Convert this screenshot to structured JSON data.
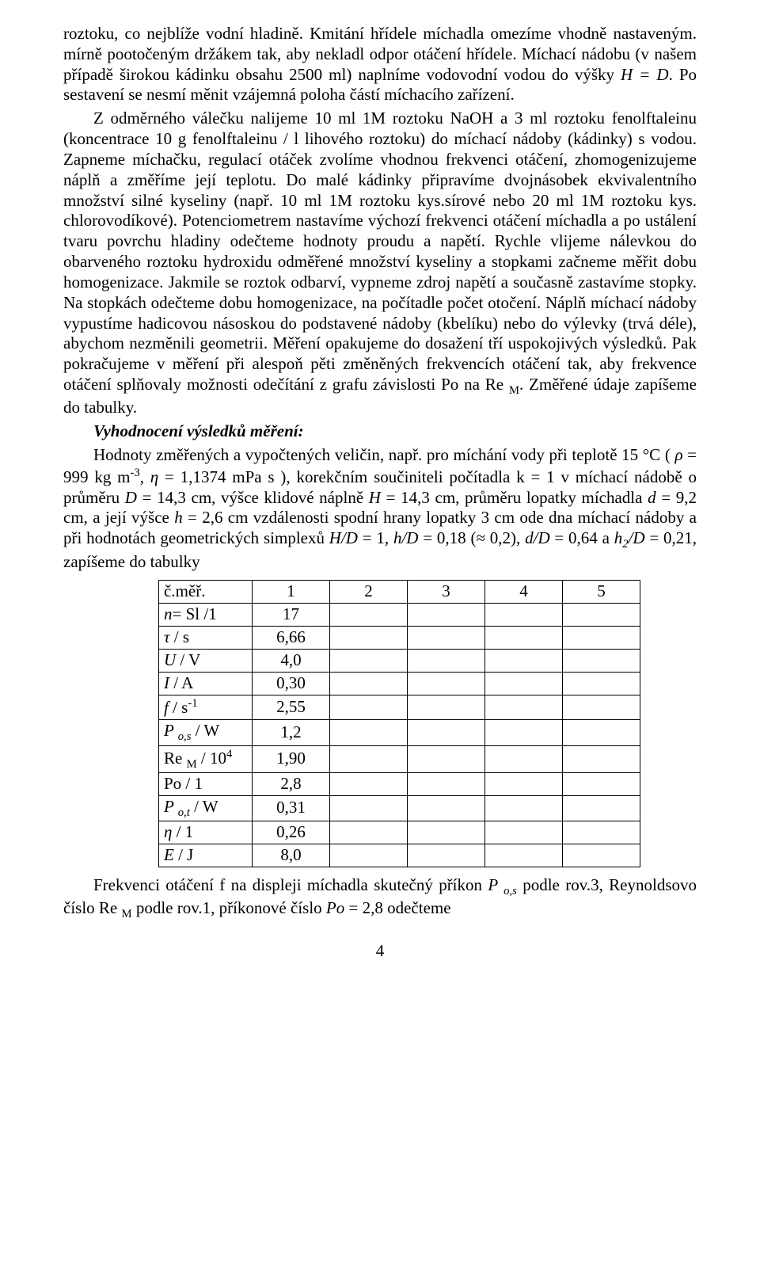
{
  "p1": "roztoku, co nejblíže vodní hladině. Kmitání hřídele míchadla omezíme vhodně nastaveným. mírně pootočeným držákem tak, aby nekladl odpor otáčení hřídele. Míchací nádobu (v našem případě širokou kádinku obsahu 2500 ml) naplníme vodovodní vodou do výšky ",
  "p1b": ".    Po sestavení se nesmí měnit vzájemná poloha částí míchacího zařízení.",
  "HeqD": "H = D",
  "p2": "Z odměrného válečku nalijeme 10 ml 1M roztoku NaOH a 3 ml roztoku fenolftaleinu (koncentrace 10 g fenolftaleinu / l lihového roztoku) do míchací nádoby (kádinky) s vodou. Zapneme míchačku, regulací otáček zvolíme vhodnou frekvenci otáčení, zhomogenizujeme náplň a změříme její teplotu. Do malé kádinky připravíme dvojnásobek ekvivalentního množství silné kyseliny (např. 10 ml 1M roztoku kys.sírové nebo 20 ml 1M roztoku kys. chlorovodíkové). Potenciometrem nastavíme výchozí frekvenci otáčení míchadla a po ustálení tvaru povrchu hladiny odečteme hodnoty proudu a napětí. Rychle vlijeme nálevkou do obarveného roztoku hydroxidu odměřené množství kyseliny a  stopkami začneme měřit dobu homogenizace. Jakmile se roztok odbarví, vypneme zdroj napětí a současně zastavíme stopky. Na stopkách odečteme dobu homogenizace, na počítadle počet otočení. Náplň míchací nádoby vypustíme hadicovou násoskou do podstavené nádoby (kbelíku) nebo do výlevky (trvá déle), abychom nezměnili geometrii. Měření opakujeme do dosažení tří uspokojivých výsledků. Pak pokračujeme v měření při alespoň pěti změněných frekvencích otáčení tak, aby frekvence otáčení splňovaly možnosti odečítání z grafu závislosti Po na Re ",
  "p2b": ". Změřené údaje zapíšeme do tabulky.",
  "subM": "M",
  "heading": "Vyhodnocení výsledků měření:",
  "p3a": "Hodnoty změřených a vypočtených veličin, např. pro míchání vody při teplotě 15 °C ( ",
  "rho": "ρ",
  "p3b": " = 999 kg m",
  "exp_neg3": "-3",
  "p3c": ", ",
  "eta": "η",
  "p3d": " = 1,1374 mPa s ), korekčním součiniteli počítadla k = 1 v míchací nádobě o průměru ",
  "D": "D",
  "p3e": " = 14,3 cm, výšce klidové náplně ",
  "H": "H",
  "p3f": " = 14,3 cm, průměru lopatky míchadla ",
  "d": "d",
  "p3g": " = 9,2 cm, a její výšce ",
  "h": "h",
  "p3h": " = 2,6 cm vzdálenosti spodní hrany lopatky 3 cm ode dna míchací nádoby a při hodnotách geometrických simplexů ",
  "HD": "H/D",
  "eq1": " = 1, ",
  "hD": "h/D",
  "eq018": " = 0,18 ",
  "approx02": "(≈ 0,2)",
  "comma": ", ",
  "dD": "d/D",
  "eq064": " = 0,64 a ",
  "h2": "h",
  "sub2": "2",
  "slashD": "/D",
  "eq021": " = 0,21, zapíšeme do tabulky",
  "table": {
    "headers": [
      "č.měř.",
      "1",
      "2",
      "3",
      "4",
      "5"
    ],
    "rows": [
      {
        "label_html": "<i>n</i>= Sl /1",
        "v": "17"
      },
      {
        "label_html": "<i>τ</i> / s",
        "v": "6,66"
      },
      {
        "label_html": "<i>U</i> / V",
        "v": "4,0"
      },
      {
        "label_html": "<i>I</i> / A",
        "v": "0,30"
      },
      {
        "label_html": "<i>f</i> / s<sup>-1</sup>",
        "v": "2,55"
      },
      {
        "label_html": "<i>P <sub>o,s</sub></i> / W",
        "v": "1,2"
      },
      {
        "label_html": "Re <sub>M</sub> / 10<sup>4</sup>",
        "v": "1,90"
      },
      {
        "label_html": "Po / 1",
        "v": "2,8"
      },
      {
        "label_html": "<i>P <sub>o,t</sub></i> / W",
        "v": "0,31"
      },
      {
        "label_html": "<i>η</i> / 1",
        "v": "0,26"
      },
      {
        "label_html": "<i>E</i> / J",
        "v": "8,0"
      }
    ]
  },
  "p4a": "Frekvenci otáčení  f  na displeji míchadla skutečný příkon  ",
  "Pos": "P ",
  "sub_os": "o,s",
  "p4b": "  podle rov.3, Reynoldsovo číslo  Re ",
  "p4c": "   podle rov.1, příkonové číslo ",
  "Po": "Po",
  "p4d": " = 2,8  odečteme",
  "page_number": "4"
}
